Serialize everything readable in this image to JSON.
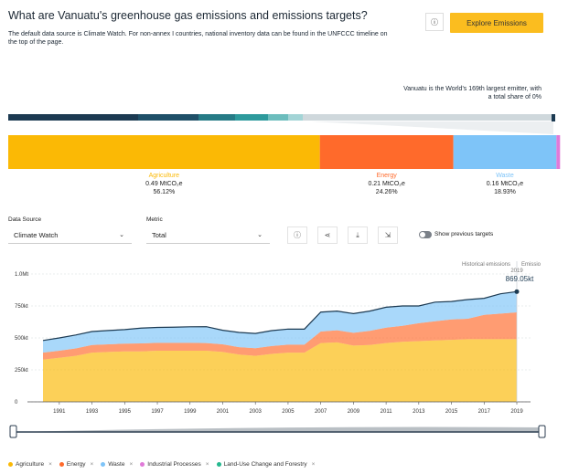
{
  "header": {
    "title": "What are Vanuatu's greenhouse gas emissions and emissions targets?",
    "description": "The default data source is Climate Watch. For non-annex I countries, national inventory data can be found in the UNFCCC timeline on the top of the page.",
    "info_icon": "info-icon",
    "explore_label": "Explore Emissions"
  },
  "emitter_note": "Vanuatu is the World's 169th largest emitter, with a total share of 0%",
  "colors": {
    "agriculture": "#fbb905",
    "energy": "#ff6a2b",
    "waste": "#7ec4f8",
    "industrial": "#e07ad8",
    "luc": "#25b88f",
    "rank_bar": [
      "#1c3a52",
      "#1f5068",
      "#267b86",
      "#2d9a9c",
      "#6cbdbd",
      "#a3d4d6",
      "#cfd8dc"
    ]
  },
  "breakdown": [
    {
      "name": "Agriculture",
      "value": "0.49 MtCO₂e",
      "share": "56.12%"
    },
    {
      "name": "Energy",
      "value": "0.21 MtCO₂e",
      "share": "24.26%"
    },
    {
      "name": "Waste",
      "value": "0.16 MtCO₂e",
      "share": "18.93%"
    }
  ],
  "controls": {
    "data_source_label": "Data Source",
    "data_source_value": "Climate Watch",
    "metric_label": "Metric",
    "metric_value": "Total",
    "show_previous_label": "Show previous targets"
  },
  "chart_data": {
    "type": "area",
    "stacked": true,
    "x": [
      1990,
      1991,
      1992,
      1993,
      1994,
      1995,
      1996,
      1997,
      1998,
      1999,
      2000,
      2001,
      2002,
      2003,
      2004,
      2005,
      2006,
      2007,
      2008,
      2009,
      2010,
      2011,
      2012,
      2013,
      2014,
      2015,
      2016,
      2017,
      2018,
      2019
    ],
    "x_ticks": [
      "1991",
      "1993",
      "1995",
      "1997",
      "1999",
      "2001",
      "2003",
      "2005",
      "2007",
      "2009",
      "2011",
      "2013",
      "2015",
      "2017",
      "2019"
    ],
    "y_ticks": [
      "0",
      "250kt",
      "500kt",
      "750kt",
      "1.0Mt"
    ],
    "ylim": [
      0,
      1000
    ],
    "unit": "kt",
    "series": [
      {
        "name": "Agriculture",
        "values": [
          330,
          345,
          360,
          385,
          390,
          395,
          395,
          400,
          400,
          400,
          400,
          390,
          370,
          360,
          375,
          385,
          385,
          460,
          465,
          440,
          445,
          460,
          470,
          475,
          480,
          485,
          490,
          490,
          490,
          490
        ]
      },
      {
        "name": "Energy",
        "values": [
          55,
          55,
          58,
          60,
          60,
          60,
          62,
          62,
          62,
          62,
          60,
          60,
          58,
          60,
          62,
          62,
          62,
          90,
          95,
          100,
          110,
          120,
          125,
          140,
          150,
          160,
          160,
          190,
          200,
          210
        ]
      },
      {
        "name": "Waste",
        "values": [
          95,
          100,
          105,
          105,
          108,
          110,
          120,
          120,
          122,
          125,
          128,
          110,
          115,
          115,
          120,
          122,
          122,
          152,
          150,
          150,
          155,
          160,
          155,
          135,
          150,
          140,
          150,
          130,
          155,
          162
        ]
      },
      {
        "name": "Industrial Processes",
        "values": [
          1,
          1,
          1,
          1,
          1,
          1,
          1,
          1,
          1,
          1,
          1,
          1,
          1,
          1,
          1,
          1,
          1,
          1,
          1,
          1,
          1,
          1,
          1,
          1,
          1,
          1,
          1,
          1,
          1,
          1
        ]
      },
      {
        "name": "Land-Use Change and Forestry",
        "values": [
          0,
          0,
          0,
          0,
          0,
          0,
          0,
          0,
          0,
          0,
          0,
          0,
          0,
          0,
          0,
          0,
          0,
          0,
          0,
          0,
          0,
          0,
          0,
          0,
          0,
          0,
          0,
          0,
          0,
          0
        ]
      }
    ],
    "annotations": {
      "historical_label": "Historical emissions",
      "emissions_label": "Emissio",
      "last_year": "2019",
      "last_value": "869.05kt"
    }
  },
  "legend": [
    {
      "name": "Agriculture",
      "color": "#fbb905"
    },
    {
      "name": "Energy",
      "color": "#ff6a2b"
    },
    {
      "name": "Waste",
      "color": "#7ec4f8"
    },
    {
      "name": "Industrial Processes",
      "color": "#e07ad8"
    },
    {
      "name": "Land-Use Change and Forestry",
      "color": "#25b88f"
    }
  ]
}
